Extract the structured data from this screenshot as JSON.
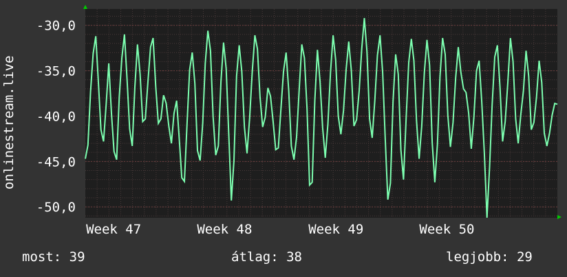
{
  "chart_data": {
    "type": "line",
    "ylabel": "onlinestream.live",
    "ylim": [
      -51.2,
      -28.2
    ],
    "yticks": [
      "-30,0",
      "-35,0",
      "-40,0",
      "-45,0",
      "-50,0"
    ],
    "ytick_values": [
      -30,
      -35,
      -40,
      -45,
      -50
    ],
    "xticks": [
      "Week 47",
      "Week 48",
      "Week 49",
      "Week 50"
    ],
    "xtick_positions": [
      0.06,
      0.295,
      0.531,
      0.766
    ],
    "grid": true,
    "series": [
      {
        "color": "#7dffb0",
        "values": [
          -44.7,
          -43.2,
          -37.3,
          -33.1,
          -31.2,
          -36.3,
          -41.5,
          -42.8,
          -38.7,
          -34.2,
          -39.6,
          -43.9,
          -44.8,
          -37.9,
          -33.6,
          -31.0,
          -35.9,
          -41.4,
          -43.3,
          -36.8,
          -32.1,
          -35.4,
          -40.6,
          -40.3,
          -36.2,
          -32.4,
          -31.4,
          -36.7,
          -40.8,
          -40.3,
          -37.7,
          -38.6,
          -41.1,
          -43.0,
          -39.7,
          -38.3,
          -42.4,
          -46.8,
          -47.2,
          -40.9,
          -34.9,
          -33.0,
          -36.4,
          -43.8,
          -44.9,
          -40.8,
          -34.2,
          -30.6,
          -32.8,
          -40.1,
          -44.3,
          -43.3,
          -36.2,
          -31.9,
          -34.8,
          -42.1,
          -49.3,
          -44.9,
          -35.6,
          -32.2,
          -35.1,
          -41.2,
          -44.1,
          -40.2,
          -35.1,
          -31.1,
          -32.6,
          -37.9,
          -41.2,
          -40.1,
          -36.9,
          -37.8,
          -40.6,
          -43.7,
          -43.5,
          -39.2,
          -35.1,
          -33.0,
          -37.2,
          -43.3,
          -44.8,
          -42.3,
          -37.1,
          -32.1,
          -33.6,
          -39.2,
          -47.6,
          -47.3,
          -38.3,
          -32.7,
          -36.2,
          -41.3,
          -44.6,
          -40.9,
          -35.2,
          -31.1,
          -33.8,
          -40.0,
          -42.0,
          -39.4,
          -34.9,
          -31.8,
          -35.0,
          -41.1,
          -40.4,
          -37.2,
          -32.6,
          -29.2,
          -32.9,
          -40.3,
          -42.4,
          -38.3,
          -33.3,
          -31.1,
          -35.2,
          -42.6,
          -49.2,
          -47.4,
          -38.4,
          -33.2,
          -35.4,
          -43.7,
          -47.0,
          -40.3,
          -34.1,
          -31.5,
          -33.9,
          -40.5,
          -44.7,
          -41.1,
          -35.2,
          -31.6,
          -34.4,
          -42.9,
          -47.3,
          -43.1,
          -35.7,
          -31.4,
          -33.2,
          -39.9,
          -43.4,
          -40.7,
          -35.8,
          -32.4,
          -35.2,
          -37.0,
          -37.4,
          -39.7,
          -43.6,
          -40.1,
          -35.0,
          -33.9,
          -38.4,
          -44.1,
          -51.2,
          -45.6,
          -38.8,
          -33.5,
          -32.2,
          -36.8,
          -42.8,
          -40.6,
          -36.3,
          -31.4,
          -34.0,
          -40.3,
          -43.0,
          -39.8,
          -37.2,
          -32.8,
          -35.6,
          -41.5,
          -40.7,
          -37.9,
          -33.9,
          -36.3,
          -41.9,
          -43.3,
          -41.9,
          -39.9,
          -38.6,
          -38.7
        ]
      }
    ]
  },
  "stats": {
    "current": "most: 39",
    "average": "átlag: 38",
    "best": "legjobb: 29"
  },
  "colors": {
    "background": "#333333",
    "plot_background": "#1e1e1e",
    "line": "#7dffb0",
    "grid_minor": "#4a3a3a",
    "grid_major": "#6b3d3d",
    "arrow": "#00cc00"
  }
}
